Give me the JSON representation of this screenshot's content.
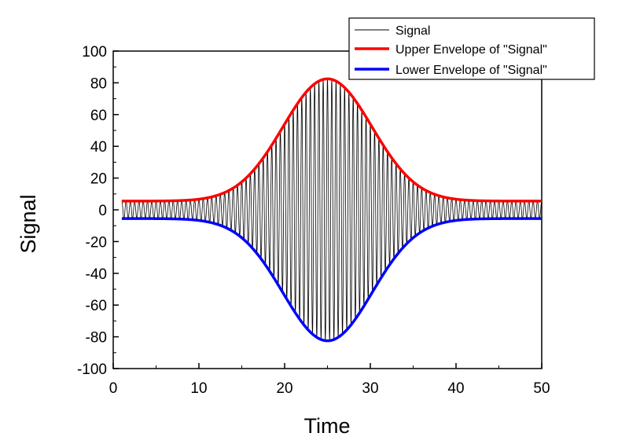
{
  "chart_data": {
    "type": "line",
    "xlabel": "Time",
    "ylabel": "Signal",
    "xlim": [
      0,
      50
    ],
    "ylim": [
      -100,
      100
    ],
    "xticks": [
      0,
      10,
      20,
      30,
      40,
      50
    ],
    "yticks": [
      -100,
      -80,
      -60,
      -40,
      -20,
      0,
      20,
      40,
      60,
      80,
      100
    ],
    "grid": false,
    "legend_position": "top-right",
    "signal_model": {
      "description_of_series": "oscillation under a Gaussian envelope",
      "baseline_amplitude": 5.5,
      "peak_amplitude": 82.5,
      "peak_time": 25,
      "gaussian_sigma": 5.2,
      "cycles_per_time_unit": 1.0,
      "x_start": 1,
      "x_end": 50
    },
    "series": [
      {
        "name": "Signal",
        "color": "#000000",
        "style": "thin",
        "x": [
          1,
          10,
          15,
          20,
          22,
          25,
          28,
          30,
          35,
          40,
          50
        ],
        "values": [
          5.5,
          7.5,
          19.6,
          51.3,
          68.0,
          82.5,
          68.0,
          51.3,
          19.6,
          7.5,
          5.5
        ]
      },
      {
        "name": "Upper Envelope of \"Signal\"",
        "color": "#ff0000",
        "style": "thick",
        "x": [
          1,
          10,
          15,
          20,
          22,
          25,
          28,
          30,
          35,
          40,
          50
        ],
        "values": [
          5.5,
          7.5,
          19.6,
          51.3,
          68.0,
          82.5,
          68.0,
          51.3,
          19.6,
          7.5,
          5.5
        ]
      },
      {
        "name": "Lower Envelope of \"Signal\"",
        "color": "#0000ff",
        "style": "thick",
        "x": [
          1,
          10,
          15,
          20,
          22,
          25,
          28,
          30,
          35,
          40,
          50
        ],
        "values": [
          -5.5,
          -7.5,
          -19.6,
          -51.3,
          -68.0,
          -82.5,
          -68.0,
          -51.3,
          -19.6,
          -7.5,
          -5.5
        ]
      }
    ]
  }
}
